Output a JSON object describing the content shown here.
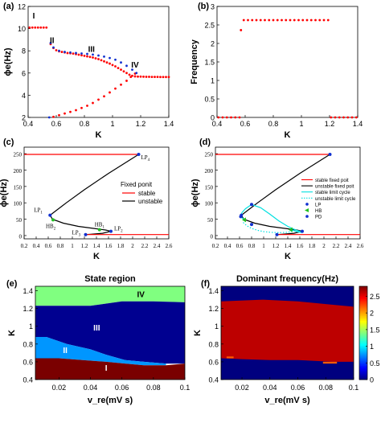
{
  "figure": {
    "panel_labels": [
      "(a)",
      "(b)",
      "(c)",
      "(d)",
      "(e)",
      "(f)"
    ]
  },
  "colors": {
    "stable": "#ff0000",
    "unstable": "#000000",
    "branch_blue": "#1030d0",
    "stable_cycle": "#00e0e0",
    "hb_marker": "#20c020",
    "region_I": "#7a0000",
    "region_II": "#0096ff",
    "region_III": "#000090",
    "region_IV": "#80ff80"
  },
  "chart_data": [
    {
      "panel": "(a)",
      "type": "scatter",
      "xlabel": "K",
      "ylabel": "ϕe(Hz)",
      "xlim": [
        0.4,
        1.4
      ],
      "ylim": [
        2,
        12
      ],
      "xticks": [
        "0.4",
        "0.6",
        "0.8",
        "1",
        "1.2",
        "1.4"
      ],
      "yticks": [
        "2",
        "4",
        "6",
        "8",
        "10",
        "12"
      ],
      "annotations": [
        {
          "text": "I",
          "x": 0.44,
          "y": 10.9
        },
        {
          "text": "II",
          "x": 0.57,
          "y": 8.7
        },
        {
          "text": "III",
          "x": 0.85,
          "y": 7.9
        },
        {
          "text": "IV",
          "x": 1.16,
          "y": 6.5
        }
      ],
      "series": [
        {
          "style": "stable-red",
          "x": [
            0.41,
            0.43,
            0.45,
            0.47,
            0.49,
            0.51,
            0.53
          ],
          "y": [
            10.1,
            10.1,
            10.1,
            10.1,
            10.1,
            10.1,
            10.1
          ]
        },
        {
          "style": "stable-red",
          "x": [
            0.56,
            0.58,
            0.6,
            0.62,
            0.64,
            0.66,
            0.68,
            0.7,
            0.72,
            0.74,
            0.76,
            0.78,
            0.8,
            0.82,
            0.84,
            0.86,
            0.88,
            0.9,
            0.92,
            0.94,
            0.96,
            0.98,
            1.0,
            1.02,
            1.04,
            1.06,
            1.08,
            1.1,
            1.12,
            1.14,
            1.16,
            1.18
          ],
          "y": [
            8.6,
            8.25,
            8.05,
            7.95,
            7.9,
            7.85,
            7.8,
            7.78,
            7.75,
            7.7,
            7.65,
            7.6,
            7.55,
            7.5,
            7.45,
            7.4,
            7.32,
            7.25,
            7.15,
            7.05,
            6.95,
            6.85,
            6.72,
            6.6,
            6.45,
            6.3,
            6.15,
            6.0,
            5.85,
            5.75,
            5.7,
            5.68
          ]
        },
        {
          "style": "stable-red",
          "x": [
            1.2,
            1.22,
            1.24,
            1.26,
            1.28,
            1.3,
            1.32,
            1.34,
            1.36,
            1.38,
            1.4
          ],
          "y": [
            5.68,
            5.67,
            5.66,
            5.66,
            5.65,
            5.65,
            5.65,
            5.64,
            5.64,
            5.64,
            5.64
          ]
        },
        {
          "style": "stable-red",
          "x": [
            0.58,
            0.62,
            0.66,
            0.7,
            0.74,
            0.78,
            0.82,
            0.86,
            0.9,
            0.94,
            0.98,
            1.02,
            1.06,
            1.1,
            1.13,
            1.16
          ],
          "y": [
            2.05,
            2.2,
            2.35,
            2.5,
            2.65,
            2.85,
            3.05,
            3.3,
            3.6,
            3.9,
            4.25,
            4.6,
            4.95,
            5.3,
            5.65,
            5.95
          ]
        },
        {
          "style": "branch-blue",
          "x": [
            0.55,
            0.56,
            0.58,
            0.62,
            0.66,
            0.7,
            0.74,
            0.78,
            0.82,
            0.86,
            0.9,
            0.94,
            0.98,
            1.02,
            1.06,
            1.1,
            1.14,
            1.17
          ],
          "y": [
            2.0,
            8.7,
            8.3,
            8.0,
            7.9,
            7.85,
            7.8,
            7.76,
            7.72,
            7.66,
            7.58,
            7.48,
            7.35,
            7.2,
            6.95,
            6.65,
            6.3,
            6.0
          ]
        }
      ]
    },
    {
      "panel": "(b)",
      "type": "scatter",
      "xlabel": "K",
      "ylabel": "Frequency",
      "xlim": [
        0.4,
        1.4
      ],
      "ylim": [
        0,
        3
      ],
      "xticks": [
        "0.4",
        "0.6",
        "0.8",
        "1",
        "1.2",
        "1.4"
      ],
      "yticks": [
        "0",
        "0.5",
        "1",
        "1.5",
        "2",
        "2.5",
        "3"
      ],
      "series": [
        {
          "style": "stable-red",
          "x": [
            0.41,
            0.44,
            0.47,
            0.5,
            0.53,
            0.56
          ],
          "y": [
            0,
            0,
            0,
            0,
            0,
            0
          ]
        },
        {
          "style": "stable-red",
          "x": [
            0.57
          ],
          "y": [
            2.36
          ]
        },
        {
          "style": "stable-red",
          "x": [
            0.59,
            0.62,
            0.65,
            0.68,
            0.71,
            0.74,
            0.77,
            0.8,
            0.83,
            0.86,
            0.89,
            0.92,
            0.95,
            0.98,
            1.01,
            1.04,
            1.07,
            1.1,
            1.13,
            1.16,
            1.19
          ],
          "y": [
            2.63,
            2.63,
            2.63,
            2.63,
            2.63,
            2.63,
            2.63,
            2.63,
            2.63,
            2.63,
            2.63,
            2.63,
            2.63,
            2.63,
            2.63,
            2.63,
            2.63,
            2.63,
            2.63,
            2.63,
            2.63
          ]
        },
        {
          "style": "stable-red",
          "x": [
            1.21,
            1.24,
            1.27,
            1.3,
            1.33,
            1.36,
            1.39
          ],
          "y": [
            0,
            0,
            0,
            0,
            0,
            0,
            0
          ]
        }
      ]
    },
    {
      "panel": "(c)",
      "type": "line",
      "xlabel": "K",
      "ylabel": "ϕe(Hz)",
      "xlim": [
        0.2,
        2.6
      ],
      "ylim": [
        -10,
        270
      ],
      "xticks": [
        "0.2",
        "0.4",
        "0.6",
        "0.8",
        "1",
        "1.2",
        "1.4",
        "1.6",
        "1.8",
        "2",
        "2.2",
        "2.4",
        "2.6"
      ],
      "yticks": [
        "0",
        "50",
        "100",
        "150",
        "200",
        "250"
      ],
      "legend": {
        "title": "Fixed ponit",
        "entries": [
          "stable",
          "unstable"
        ],
        "position": "right"
      },
      "series": [
        {
          "style": "stable-red",
          "x": [
            0.2,
            2.1
          ],
          "y": [
            248,
            248
          ]
        },
        {
          "style": "unstable-black",
          "x": [
            2.1,
            1.6,
            1.2,
            0.9,
            0.7,
            0.63,
            0.67,
            0.85,
            1.1,
            1.35,
            1.55,
            1.64,
            1.5,
            1.3,
            1.22
          ],
          "y": [
            248,
            190,
            140,
            100,
            72,
            62,
            50,
            38,
            28,
            22,
            17,
            13,
            7,
            4,
            3
          ]
        },
        {
          "style": "stable-red",
          "x": [
            1.22,
            2.6
          ],
          "y": [
            3,
            3
          ]
        }
      ],
      "points": [
        {
          "label": "LP1",
          "x": 0.63,
          "y": 62,
          "color": "blue"
        },
        {
          "label": "HB2",
          "x": 0.68,
          "y": 48,
          "color": "green"
        },
        {
          "label": "HB1",
          "x": 1.45,
          "y": 18,
          "color": "green"
        },
        {
          "label": "LP2",
          "x": 1.64,
          "y": 13,
          "color": "blue"
        },
        {
          "label": "LP3",
          "x": 1.22,
          "y": 3,
          "color": "blue"
        },
        {
          "label": "LP4",
          "x": 2.1,
          "y": 248,
          "color": "blue"
        }
      ]
    },
    {
      "panel": "(d)",
      "type": "line",
      "xlabel": "K",
      "ylabel": "ϕe(Hz)",
      "xlim": [
        0.2,
        2.6
      ],
      "ylim": [
        -10,
        270
      ],
      "xticks": [
        "0.2",
        "0.4",
        "0.6",
        "0.8",
        "1",
        "1.2",
        "1.4",
        "1.6",
        "1.8",
        "2",
        "2.2",
        "2.4",
        "2.6"
      ],
      "yticks": [
        "0",
        "50",
        "100",
        "150",
        "200",
        "250"
      ],
      "legend": {
        "entries": [
          "stable fixed poit",
          "unstable fixed poit",
          "stable limit cycle",
          "unstable limit cycle",
          "LP",
          "HB",
          "PD"
        ],
        "position": "right"
      },
      "series": [
        {
          "style": "stable-red",
          "x": [
            0.2,
            2.1
          ],
          "y": [
            248,
            248
          ]
        },
        {
          "style": "unstable-black",
          "x": [
            2.1,
            1.6,
            1.2,
            0.9,
            0.7,
            0.63,
            0.67,
            0.85,
            1.1,
            1.35,
            1.55,
            1.64,
            1.5,
            1.3,
            1.22
          ],
          "y": [
            248,
            190,
            140,
            100,
            72,
            62,
            50,
            38,
            28,
            22,
            17,
            13,
            7,
            4,
            3
          ]
        },
        {
          "style": "stable-red",
          "x": [
            1.22,
            2.6
          ],
          "y": [
            3,
            3
          ]
        },
        {
          "style": "stable-cycle",
          "x": [
            0.68,
            0.62,
            0.64,
            0.7,
            0.8,
            0.95,
            1.1,
            1.25,
            1.4,
            1.52,
            1.6,
            1.62,
            1.55,
            1.45
          ],
          "y": [
            48,
            58,
            70,
            82,
            95,
            85,
            66,
            45,
            28,
            18,
            13,
            10,
            12,
            18
          ]
        },
        {
          "style": "unstable-cycle",
          "x": [
            0.66,
            0.72,
            0.8,
            0.9,
            1.0,
            1.12,
            1.25,
            1.38,
            1.5
          ],
          "y": [
            40,
            30,
            22,
            16,
            12,
            10,
            9,
            10,
            13
          ]
        }
      ],
      "points": [
        {
          "label": "LP",
          "x": 0.63,
          "y": 62,
          "color": "blue"
        },
        {
          "label": "LP",
          "x": 1.64,
          "y": 13,
          "color": "blue"
        },
        {
          "label": "LP",
          "x": 1.22,
          "y": 3,
          "color": "blue"
        },
        {
          "label": "LP",
          "x": 2.1,
          "y": 248,
          "color": "blue"
        },
        {
          "label": "HB",
          "x": 0.68,
          "y": 48,
          "color": "green"
        },
        {
          "label": "HB",
          "x": 1.45,
          "y": 18,
          "color": "green"
        },
        {
          "label": "PD",
          "x": 0.8,
          "y": 95,
          "color": "blue"
        },
        {
          "label": "PD",
          "x": 0.62,
          "y": 58,
          "color": "blue"
        },
        {
          "label": "PD",
          "x": 0.8,
          "y": 34,
          "color": "blue"
        }
      ]
    },
    {
      "panel": "(e)",
      "type": "heatmap",
      "title": "State region",
      "xlabel": "v_re(mV s)",
      "ylabel": "K",
      "xlim": [
        0.005,
        0.1
      ],
      "ylim": [
        0.4,
        1.45
      ],
      "xticks": [
        "0.02",
        "0.04",
        "0.06",
        "0.08",
        "0.1"
      ],
      "yticks": [
        "0.4",
        "0.6",
        "0.8",
        "1",
        "1.2",
        "1.4"
      ],
      "regions": [
        {
          "label": "IV",
          "polygon": [
            [
              0.005,
              1.45
            ],
            [
              0.1,
              1.45
            ],
            [
              0.1,
              1.27
            ],
            [
              0.08,
              1.28
            ],
            [
              0.06,
              1.28
            ],
            [
              0.04,
              1.23
            ],
            [
              0.005,
              1.23
            ]
          ]
        },
        {
          "label": "III",
          "polygon": [
            [
              0.005,
              1.23
            ],
            [
              0.04,
              1.23
            ],
            [
              0.06,
              1.28
            ],
            [
              0.08,
              1.28
            ],
            [
              0.1,
              1.27
            ],
            [
              0.1,
              0.58
            ],
            [
              0.088,
              0.58
            ],
            [
              0.074,
              0.6
            ],
            [
              0.062,
              0.62
            ],
            [
              0.05,
              0.68
            ],
            [
              0.04,
              0.74
            ],
            [
              0.025,
              0.8
            ],
            [
              0.012,
              0.88
            ],
            [
              0.005,
              0.88
            ]
          ]
        },
        {
          "label": "II",
          "polygon": [
            [
              0.005,
              0.88
            ],
            [
              0.012,
              0.88
            ],
            [
              0.025,
              0.8
            ],
            [
              0.04,
              0.74
            ],
            [
              0.05,
              0.68
            ],
            [
              0.062,
              0.62
            ],
            [
              0.074,
              0.6
            ],
            [
              0.088,
              0.58
            ],
            [
              0.088,
              0.56
            ],
            [
              0.074,
              0.56
            ],
            [
              0.062,
              0.58
            ],
            [
              0.05,
              0.6
            ],
            [
              0.035,
              0.62
            ],
            [
              0.02,
              0.64
            ],
            [
              0.005,
              0.64
            ]
          ]
        },
        {
          "label": "I",
          "polygon": [
            [
              0.005,
              0.64
            ],
            [
              0.02,
              0.64
            ],
            [
              0.035,
              0.62
            ],
            [
              0.05,
              0.6
            ],
            [
              0.062,
              0.58
            ],
            [
              0.074,
              0.56
            ],
            [
              0.088,
              0.56
            ],
            [
              0.1,
              0.58
            ],
            [
              0.1,
              0.4
            ],
            [
              0.005,
              0.4
            ]
          ]
        }
      ],
      "annotations": [
        {
          "text": "IV",
          "x": 0.072,
          "y": 1.33
        },
        {
          "text": "III",
          "x": 0.044,
          "y": 0.95
        },
        {
          "text": "II",
          "x": 0.024,
          "y": 0.7
        },
        {
          "text": "I",
          "x": 0.05,
          "y": 0.5
        }
      ]
    },
    {
      "panel": "(f)",
      "type": "heatmap",
      "title": "Dominant frequency(Hz)",
      "xlabel": "v_re(mV s)",
      "ylabel": "K",
      "xlim": [
        0.005,
        0.1
      ],
      "ylim": [
        0.4,
        1.45
      ],
      "xticks": [
        "0.02",
        "0.04",
        "0.06",
        "0.08",
        "0.1"
      ],
      "yticks": [
        "0.4",
        "0.6",
        "0.8",
        "1",
        "1.2",
        "1.4"
      ],
      "colorbar": {
        "min": 0,
        "max": 2.8,
        "ticks": [
          "0",
          "0.5",
          "1",
          "1.5",
          "2",
          "2.5"
        ]
      },
      "regions": [
        {
          "value": 2.63,
          "polygon": [
            [
              0.005,
              1.28
            ],
            [
              0.035,
              1.3
            ],
            [
              0.06,
              1.28
            ],
            [
              0.08,
              1.25
            ],
            [
              0.1,
              1.22
            ],
            [
              0.1,
              0.6
            ],
            [
              0.085,
              0.6
            ],
            [
              0.06,
              0.62
            ],
            [
              0.04,
              0.62
            ],
            [
              0.02,
              0.63
            ],
            [
              0.005,
              0.64
            ]
          ]
        },
        {
          "value": 2.2,
          "polygon": [
            [
              0.009,
              0.66
            ],
            [
              0.014,
              0.66
            ],
            [
              0.014,
              0.64
            ],
            [
              0.009,
              0.64
            ]
          ]
        },
        {
          "value": 2.2,
          "polygon": [
            [
              0.078,
              0.6
            ],
            [
              0.088,
              0.6
            ],
            [
              0.088,
              0.58
            ],
            [
              0.078,
              0.58
            ]
          ]
        }
      ]
    }
  ]
}
